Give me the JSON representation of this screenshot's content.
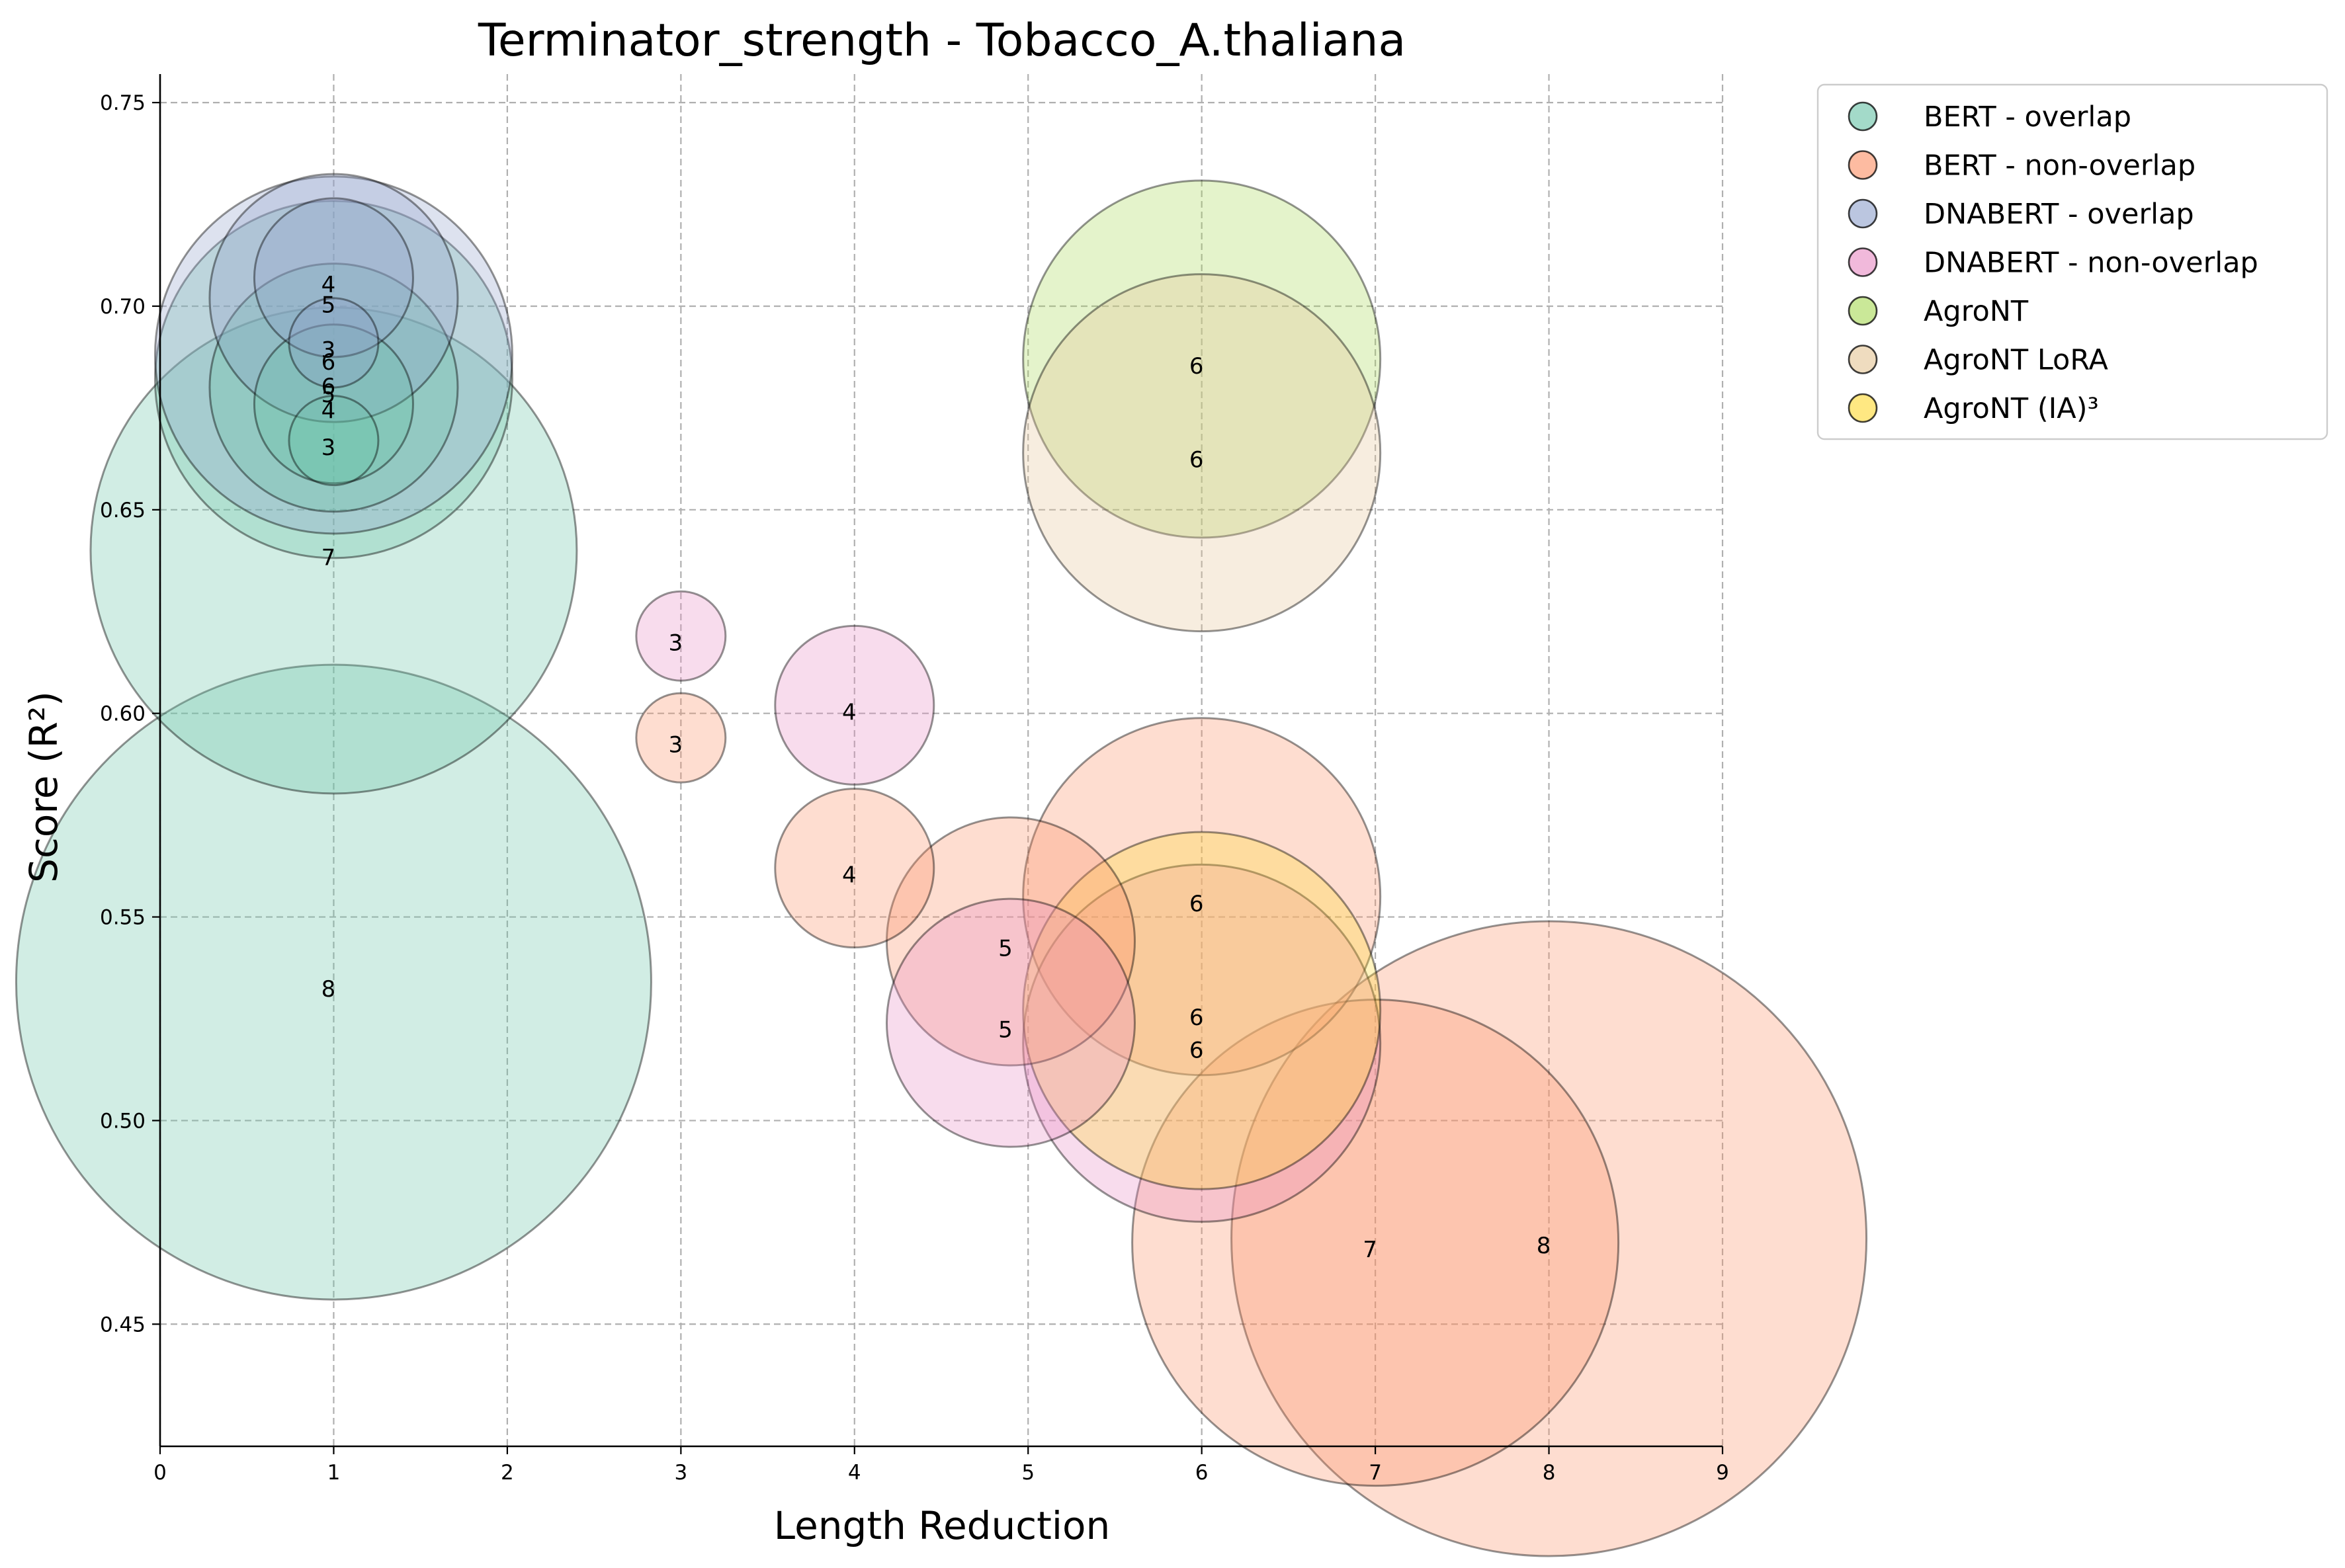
{
  "chart_data": {
    "type": "scatter",
    "title": "Terminator_strength - Tobacco_A.thaliana",
    "xlabel": "Length Reduction",
    "ylabel": "Score (R²)",
    "xlim": [
      0,
      9
    ],
    "ylim": [
      0.42,
      0.757
    ],
    "xticks": [
      "0",
      "1",
      "2",
      "3",
      "4",
      "5",
      "6",
      "7",
      "8",
      "9"
    ],
    "yticks": [
      "0.45",
      "0.50",
      "0.55",
      "0.60",
      "0.65",
      "0.70",
      "0.75"
    ],
    "grid": true,
    "legend_position": "outside upper right",
    "bubble_size": "proportional to length reduction label",
    "series": [
      {
        "name": "BERT - overlap",
        "color": "#66c2a5",
        "points": [
          {
            "x": 1,
            "y": 0.667,
            "label": "3"
          },
          {
            "x": 1,
            "y": 0.676,
            "label": "4"
          },
          {
            "x": 1,
            "y": 0.68,
            "label": "5"
          },
          {
            "x": 1,
            "y": 0.682,
            "label": "6"
          },
          {
            "x": 1,
            "y": 0.64,
            "label": "7"
          },
          {
            "x": 1,
            "y": 0.534,
            "label": "8"
          }
        ]
      },
      {
        "name": "BERT - non-overlap",
        "color": "#fc8d62",
        "points": [
          {
            "x": 3,
            "y": 0.594,
            "label": "3"
          },
          {
            "x": 4,
            "y": 0.562,
            "label": "4"
          },
          {
            "x": 4.9,
            "y": 0.544,
            "label": "5"
          },
          {
            "x": 6,
            "y": 0.555,
            "label": "6"
          },
          {
            "x": 7,
            "y": 0.47,
            "label": "7"
          },
          {
            "x": 8,
            "y": 0.471,
            "label": "8"
          }
        ]
      },
      {
        "name": "DNABERT - overlap",
        "color": "#8da0cb",
        "points": [
          {
            "x": 1,
            "y": 0.691,
            "label": "3"
          },
          {
            "x": 1,
            "y": 0.707,
            "label": "4"
          },
          {
            "x": 1,
            "y": 0.702,
            "label": "5"
          },
          {
            "x": 1,
            "y": 0.688,
            "label": "6"
          }
        ]
      },
      {
        "name": "DNABERT - non-overlap",
        "color": "#e78ac3",
        "points": [
          {
            "x": 3,
            "y": 0.619,
            "label": "3"
          },
          {
            "x": 4,
            "y": 0.602,
            "label": "4"
          },
          {
            "x": 4.9,
            "y": 0.524,
            "label": "5"
          },
          {
            "x": 6,
            "y": 0.519,
            "label": "6"
          }
        ]
      },
      {
        "name": "AgroNT",
        "color": "#a6d854",
        "points": [
          {
            "x": 6,
            "y": 0.687,
            "label": "6"
          }
        ]
      },
      {
        "name": "AgroNT LoRA",
        "color": "#e5c494",
        "points": [
          {
            "x": 6,
            "y": 0.664,
            "label": "6"
          }
        ]
      },
      {
        "name": "AgroNT (IA)³",
        "color": "#ffd92f",
        "points": [
          {
            "x": 6,
            "y": 0.527,
            "label": "6"
          }
        ]
      }
    ]
  }
}
